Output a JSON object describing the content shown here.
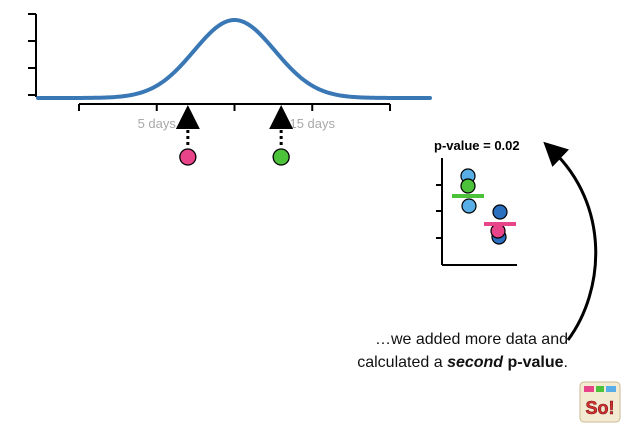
{
  "colors": {
    "curve": "#3a78b5",
    "pink": "#e8448a",
    "green": "#4cc23a",
    "light_blue": "#5aaee8",
    "dark_blue": "#2b6fbf",
    "dots": "#000000",
    "axis_label": "#a9a9a9"
  },
  "distribution": {
    "type": "normal-curve",
    "x_ticks": [
      {
        "value": 0,
        "label": ""
      },
      {
        "value": 5,
        "label": "5 days"
      },
      {
        "value": 10,
        "label": ""
      },
      {
        "value": 15,
        "label": "15 days"
      },
      {
        "value": 20,
        "label": ""
      }
    ],
    "mean": 10,
    "sample_points": [
      {
        "name": "pink-sample",
        "value": 7,
        "color_key": "pink"
      },
      {
        "name": "green-sample",
        "value": 13,
        "color_key": "green"
      }
    ]
  },
  "comparison": {
    "p_value_label": "p-value = 0.02",
    "group_a": {
      "color_key": "light_blue",
      "mean_color_key": "green",
      "points": 3
    },
    "group_b": {
      "color_key": "dark_blue",
      "mean_color_key": "pink",
      "points": 3
    }
  },
  "caption": {
    "line1": "…we added more data and",
    "line2_prefix": "calculated a ",
    "line2_emphasis": "second",
    "line2_bold": "p-value",
    "line2_suffix": "."
  },
  "logo": {
    "icon": "statquest-logo",
    "text": "So!"
  }
}
